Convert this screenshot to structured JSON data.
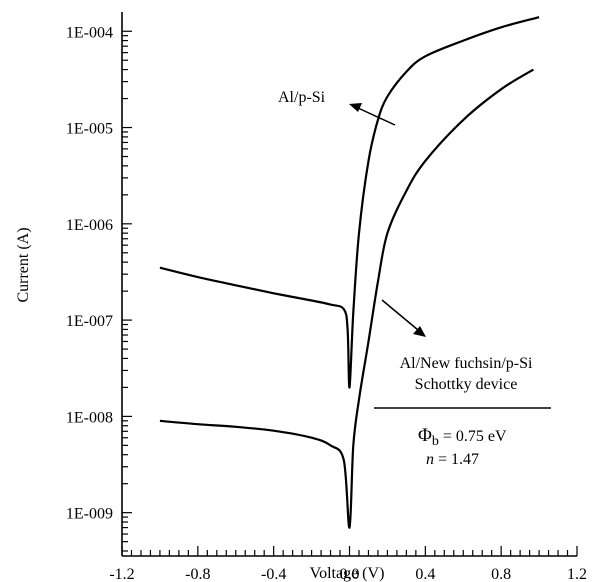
{
  "chart_data": {
    "type": "line",
    "xlabel": "Voltage (V)",
    "ylabel": "Current (A)",
    "xlim": [
      -1.2,
      1.2
    ],
    "ylim_log10": [
      -9.45,
      -3.8
    ],
    "y_scale": "log",
    "x_ticks": [
      -1.2,
      -0.8,
      -0.4,
      0.0,
      0.4,
      0.8,
      1.2
    ],
    "x_tick_labels": [
      "-1.2",
      "-0.8",
      "-0.4",
      "0.0",
      "0.4",
      "0.8",
      "1.2"
    ],
    "y_ticks": [
      1e-09,
      1e-08,
      1e-07,
      1e-06,
      1e-05,
      0.0001
    ],
    "y_tick_labels": [
      "1E-009",
      "1E-008",
      "1E-007",
      "1E-006",
      "1E-005",
      "1E-004"
    ],
    "grid": false,
    "series": [
      {
        "name": "Al/p-Si",
        "points": [
          [
            -1.0,
            3.5e-07
          ],
          [
            -0.8,
            2.8e-07
          ],
          [
            -0.6,
            2.3e-07
          ],
          [
            -0.4,
            1.9e-07
          ],
          [
            -0.2,
            1.6e-07
          ],
          [
            -0.1,
            1.45e-07
          ],
          [
            -0.03,
            1.3e-07
          ],
          [
            -0.01,
            8e-08
          ],
          [
            0.0,
            2e-08
          ],
          [
            0.02,
            1.2e-07
          ],
          [
            0.05,
            8e-07
          ],
          [
            0.1,
            4.5e-06
          ],
          [
            0.15,
            1.2e-05
          ],
          [
            0.2,
            2.1e-05
          ],
          [
            0.3,
            3.8e-05
          ],
          [
            0.4,
            5.5e-05
          ],
          [
            0.6,
            8e-05
          ],
          [
            0.8,
            0.00011
          ],
          [
            1.0,
            0.00014
          ]
        ]
      },
      {
        "name": "Al/New fuchsin/p-Si Schottky device",
        "points": [
          [
            -1.0,
            9e-09
          ],
          [
            -0.8,
            8.3e-09
          ],
          [
            -0.6,
            7.8e-09
          ],
          [
            -0.4,
            7.1e-09
          ],
          [
            -0.2,
            6e-09
          ],
          [
            -0.1,
            5e-09
          ],
          [
            -0.03,
            3.5e-09
          ],
          [
            0.0,
            7e-10
          ],
          [
            0.02,
            5e-09
          ],
          [
            0.05,
            1.5e-08
          ],
          [
            0.1,
            6e-08
          ],
          [
            0.15,
            2.5e-07
          ],
          [
            0.2,
            8e-07
          ],
          [
            0.3,
            2.2e-06
          ],
          [
            0.4,
            4.5e-06
          ],
          [
            0.6,
            1.2e-05
          ],
          [
            0.8,
            2.5e-05
          ],
          [
            0.97,
            4e-05
          ]
        ]
      }
    ],
    "annotations": {
      "label_alpsi": "Al/p-Si",
      "label_device_line1": "Al/New fuchsin/p-Si",
      "label_device_line2": "Schottky device",
      "phi_symbol": "Φ",
      "phi_subscript": "b",
      "phi_value": " = 0.75 eV",
      "n_symbol": "n",
      "n_value": " = 1.47"
    }
  }
}
